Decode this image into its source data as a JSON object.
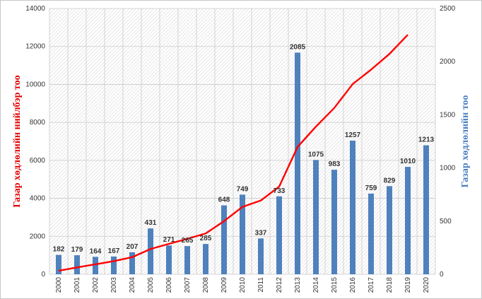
{
  "chart_data": {
    "type": "bar+line",
    "categories": [
      "2000",
      "2001",
      "2002",
      "2003",
      "2004",
      "2005",
      "2006",
      "2007",
      "2008",
      "2009",
      "2010",
      "2011",
      "2012",
      "2013",
      "2014",
      "2015",
      "2016",
      "2017",
      "2018",
      "2019",
      "2020"
    ],
    "series": [
      {
        "name": "Газар хөдлөлийн тоо",
        "type": "bar",
        "axis": "right",
        "color": "#4f81bd",
        "values": [
          182,
          179,
          164,
          167,
          207,
          431,
          271,
          265,
          285,
          648,
          749,
          337,
          733,
          2085,
          1075,
          983,
          1257,
          759,
          829,
          1010,
          1213
        ],
        "data_labels": [
          "182",
          "179",
          "164",
          "167",
          "207",
          "431",
          "271",
          "265",
          "285",
          "648",
          "749",
          "337",
          "733",
          "2085",
          "1075",
          "983",
          "1257",
          "759",
          "829",
          "1010",
          "1213"
        ]
      },
      {
        "name": "Газар хөдлөлийн нийлбэр тоо",
        "type": "line",
        "axis": "left",
        "color": "#ff0000",
        "values": [
          182,
          361,
          525,
          692,
          899,
          1330,
          1601,
          1866,
          2151,
          2799,
          3548,
          3885,
          4618,
          6703,
          7778,
          8761,
          10018,
          10777,
          11606,
          12616,
          null
        ]
      }
    ],
    "left_axis": {
      "label": "Газар хөдлөлийн нийлбэр тоо",
      "ylim": [
        0,
        14000
      ],
      "ticks": [
        "0",
        "2000",
        "4000",
        "6000",
        "8000",
        "10000",
        "12000",
        "14000"
      ]
    },
    "right_axis": {
      "label": "Газар хөдлөлийн тоо",
      "ylim": [
        0,
        2500
      ],
      "ticks": [
        "0",
        "500",
        "1000",
        "1500",
        "2000",
        "2500"
      ]
    },
    "grid": true,
    "legend": "none"
  }
}
